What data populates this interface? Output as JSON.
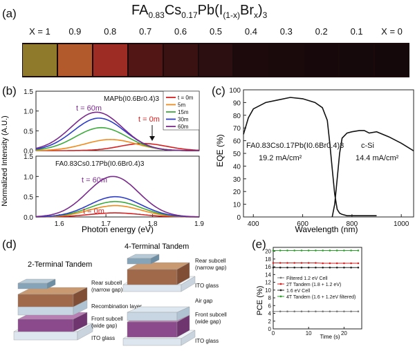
{
  "panel_a": {
    "letter": "(a)",
    "title_parts": [
      "FA",
      "0.83",
      "Cs",
      "0.17",
      "Pb(I",
      "(1-x)",
      "Br",
      "x",
      ")",
      "3"
    ],
    "samples": [
      "X = 1",
      "0.9",
      "0.8",
      "0.7",
      "0.6",
      "0.5",
      "0.4",
      "0.3",
      "0.2",
      "0.1",
      "X = 0"
    ],
    "colors": [
      "#8f7a2c",
      "#b25a2c",
      "#9c2c24",
      "#521614",
      "#3a1212",
      "#2c0f10",
      "#1c0a0c",
      "#1a0a0c",
      "#17090b",
      "#16090b",
      "#14080a"
    ]
  },
  "panel_b": {
    "letter": "(b)",
    "top_label": "MAPb(I0.6Br0.4)3",
    "bottom_label": "FA0.83Cs0.17Pb(I0.6Br0.4)3",
    "annot_60m_top": "t = 60m",
    "annot_0m_top": "t = 0m",
    "annot_60m_bottom": "t = 60m",
    "annot_0m_bottom": "t = 0m",
    "ylabel": "Normalized Intensity (A.U.)",
    "xlabel": "Photon energy (eV)",
    "xticks": [
      "1.6",
      "1.7",
      "1.8",
      "1.9"
    ],
    "yticks": [
      "0.0",
      "0.5",
      "1.0",
      "1.5"
    ],
    "legend": [
      "t = 0m",
      "5m",
      "15m",
      "30m",
      "60m"
    ],
    "series_colors": [
      "#d62020",
      "#f08a1a",
      "#3caa3c",
      "#2c3cc8",
      "#7a2a8c"
    ]
  },
  "panel_c": {
    "letter": "(c)",
    "ylabel": "EQE (%)",
    "xlabel": "Wavelength (nm)",
    "yticks": [
      "0",
      "10",
      "20",
      "30",
      "40",
      "50",
      "60",
      "70",
      "80",
      "90",
      "100"
    ],
    "xticks": [
      "400",
      "600",
      "800",
      "1000"
    ],
    "label_left": "FA0.83Cs0.17Pb(I0.6Br0.4)3",
    "value_left": "19.2 mA/cm²",
    "label_right": "c-Si",
    "value_right": "14.4 mA/cm²"
  },
  "panel_d": {
    "letter": "(d)",
    "left_title": "2-Terminal Tandem",
    "right_title": "4-Terminal Tandem",
    "left_labels": [
      "Rear subcell",
      "(narrow gap)",
      "Recombination layer",
      "Front subcell",
      "(wide gap)",
      "ITO glass"
    ],
    "right_labels": [
      "Rear subcell",
      "(narrow gap)",
      "ITO glass",
      "Air gap",
      "Front subcell",
      "(wide gap)",
      "ITO glass"
    ]
  },
  "panel_e": {
    "letter": "(e)",
    "ylabel": "PCE (%)",
    "xlabel": "Time (s)",
    "yticks": [
      "0",
      "2",
      "4",
      "6",
      "8",
      "10",
      "12",
      "14",
      "16",
      "18",
      "20"
    ],
    "xticks": [
      "0",
      "10",
      "20"
    ],
    "legend": [
      "Filtered 1.2 eV Cell",
      "2T Tandem (1.8 + 1.2 eV)",
      "1.6 eV Cell",
      "4T Tandem (1.6 + 1.2eV filtered)"
    ]
  },
  "chart_data": [
    {
      "type": "line",
      "panel": "b-top",
      "xlabel": "Photon energy (eV)",
      "ylabel": "Normalized Intensity (A.U.)",
      "xlim": [
        1.55,
        1.9
      ],
      "ylim": [
        0,
        1.5
      ],
      "series": [
        {
          "name": "t = 0m",
          "peak_x": 1.78,
          "peak_y": 0.18,
          "width": 0.05
        },
        {
          "name": "5m",
          "peak_x": 1.71,
          "peak_y": 0.28,
          "width": 0.055
        },
        {
          "name": "15m",
          "peak_x": 1.69,
          "peak_y": 0.58,
          "width": 0.055
        },
        {
          "name": "30m",
          "peak_x": 1.685,
          "peak_y": 0.82,
          "width": 0.055
        },
        {
          "name": "60m",
          "peak_x": 1.68,
          "peak_y": 0.97,
          "width": 0.055
        }
      ]
    },
    {
      "type": "line",
      "panel": "b-bottom",
      "xlabel": "Photon energy (eV)",
      "ylabel": "Normalized Intensity (A.U.)",
      "xlim": [
        1.55,
        1.9
      ],
      "ylim": [
        0,
        1.5
      ],
      "series": [
        {
          "name": "t = 0m",
          "peak_x": 1.72,
          "peak_y": 0.1,
          "width": 0.055
        },
        {
          "name": "5m",
          "peak_x": 1.72,
          "peak_y": 0.28,
          "width": 0.055
        },
        {
          "name": "15m",
          "peak_x": 1.72,
          "peak_y": 0.38,
          "width": 0.055
        },
        {
          "name": "30m",
          "peak_x": 1.72,
          "peak_y": 0.5,
          "width": 0.055
        },
        {
          "name": "60m",
          "peak_x": 1.715,
          "peak_y": 1.0,
          "width": 0.055
        }
      ]
    },
    {
      "type": "line",
      "panel": "c",
      "xlabel": "Wavelength (nm)",
      "ylabel": "EQE (%)",
      "xlim": [
        360,
        1050
      ],
      "ylim": [
        0,
        100
      ],
      "series": [
        {
          "name": "FA0.83Cs0.17Pb(I0.6Br0.4)3",
          "x": [
            360,
            380,
            400,
            450,
            500,
            550,
            600,
            650,
            680,
            700,
            710,
            720,
            730,
            740,
            750,
            760,
            780,
            800,
            850,
            900
          ],
          "y": [
            65,
            78,
            85,
            90,
            92,
            94,
            93,
            90,
            86,
            76,
            58,
            38,
            18,
            6,
            3,
            2,
            1,
            1,
            1,
            1
          ]
        },
        {
          "name": "c-Si",
          "x": [
            720,
            730,
            740,
            750,
            760,
            780,
            800,
            830,
            850,
            870,
            900,
            950,
            1000,
            1050
          ],
          "y": [
            0,
            10,
            30,
            50,
            62,
            66,
            67,
            68,
            68,
            66,
            67,
            63,
            58,
            52
          ]
        }
      ]
    },
    {
      "type": "scatter",
      "panel": "e",
      "xlabel": "Time (s)",
      "ylabel": "PCE (%)",
      "xlim": [
        0,
        25
      ],
      "ylim": [
        0,
        21
      ],
      "x": [
        0,
        2,
        4,
        6,
        8,
        10,
        12,
        14,
        16,
        18,
        20,
        22,
        24
      ],
      "series": [
        {
          "name": "Filtered 1.2 eV Cell",
          "values": [
            4.5,
            4.5,
            4.5,
            4.5,
            4.5,
            4.5,
            4.5,
            4.5,
            4.5,
            4.5,
            4.5,
            4.5,
            4.5
          ]
        },
        {
          "name": "2T Tandem (1.8 + 1.2 eV)",
          "values": [
            17.0,
            17.0,
            17.0,
            17.0,
            17.0,
            17.0,
            17.0,
            16.9,
            16.9,
            16.9,
            16.9,
            16.9,
            16.9
          ]
        },
        {
          "name": "1.6 eV Cell",
          "values": [
            15.8,
            15.8,
            15.8,
            15.8,
            15.8,
            15.8,
            15.8,
            15.8,
            15.8,
            15.8,
            15.8,
            15.8,
            15.8
          ]
        },
        {
          "name": "4T Tandem (1.6 + 1.2eV filtered)",
          "values": [
            20.2,
            20.2,
            20.2,
            20.2,
            20.2,
            20.2,
            20.2,
            20.2,
            20.2,
            20.2,
            20.2,
            20.2,
            20.2
          ]
        }
      ]
    }
  ]
}
